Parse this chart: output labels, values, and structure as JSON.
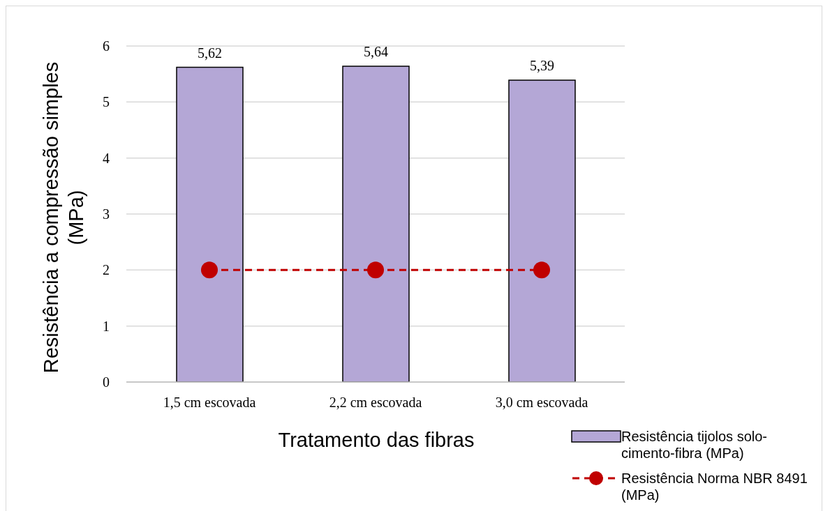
{
  "chart_data": {
    "type": "bar",
    "xlabel": "Tratamento das fibras",
    "ylabel": "Resistência a compressão simples (MPa)",
    "categories": [
      "1,5 cm escovada",
      "2,2 cm escovada",
      "3,0 cm escovada"
    ],
    "series": [
      {
        "name": "Resistência tijolos solo-cimento-fibra (MPa)",
        "color": "#b4a7d6",
        "values": [
          5.62,
          5.64,
          5.39
        ],
        "value_labels": [
          "5,62",
          "5,64",
          "5,39"
        ]
      },
      {
        "name": "Resistência Norma NBR 8491 (MPa)",
        "type": "line",
        "color": "#c00000",
        "values": [
          2,
          2,
          2
        ],
        "marker": "circle",
        "line_style": "dashed"
      }
    ],
    "ylim": [
      0,
      6
    ],
    "yticks": [
      0,
      1,
      2,
      3,
      4,
      5,
      6
    ],
    "grid": "y",
    "legend": "bottom right"
  }
}
